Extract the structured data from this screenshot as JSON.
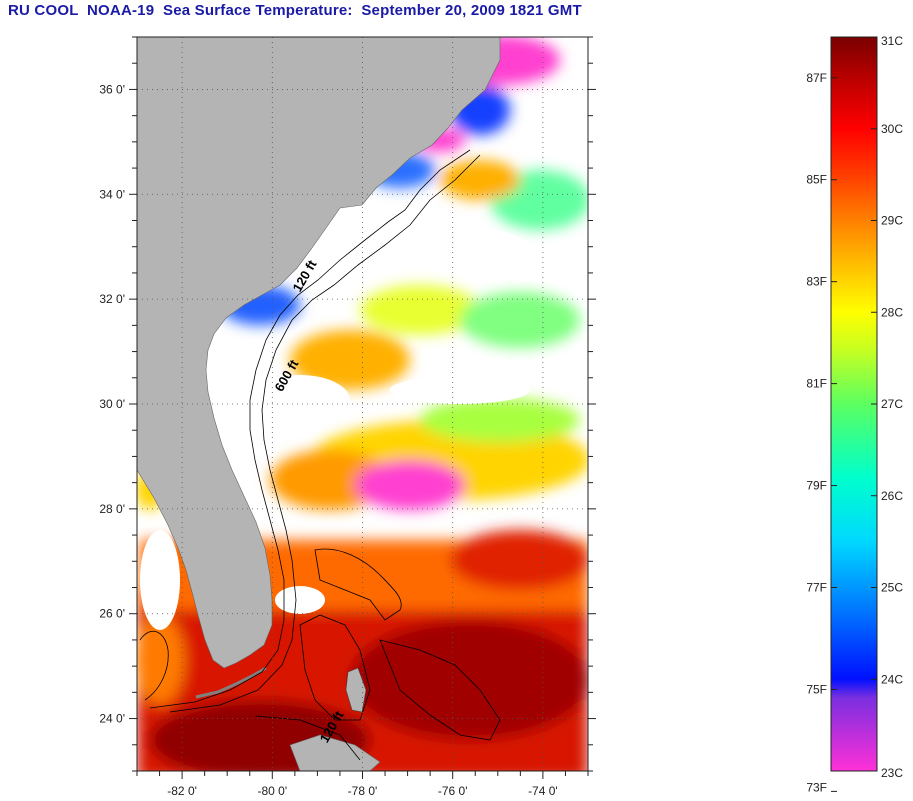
{
  "title": "RU COOL  NOAA-19  Sea Surface Temperature:  September 20, 2009 1821 GMT",
  "map": {
    "lon_range": [
      -83.0,
      -73.0
    ],
    "lat_range": [
      23.0,
      37.0
    ],
    "lon_ticks": [
      {
        "value": -82,
        "label": "-82 0'"
      },
      {
        "value": -80,
        "label": "-80 0'"
      },
      {
        "value": -78,
        "label": "-78 0'"
      },
      {
        "value": -76,
        "label": "-76 0'"
      },
      {
        "value": -74,
        "label": "-74 0'"
      }
    ],
    "lat_ticks": [
      {
        "value": 24,
        "label": "24 0'"
      },
      {
        "value": 26,
        "label": "26 0'"
      },
      {
        "value": 28,
        "label": "28 0'"
      },
      {
        "value": 30,
        "label": "30 0'"
      },
      {
        "value": 32,
        "label": "32 0'"
      },
      {
        "value": 34,
        "label": "34 0'"
      },
      {
        "value": 36,
        "label": "36 0'"
      }
    ],
    "grid": "dotted",
    "contour_labels": [
      {
        "text": "120 ft",
        "lon": -79.2,
        "lat": 32.4
      },
      {
        "text": "600 ft",
        "lon": -79.6,
        "lat": 30.5
      },
      {
        "text": "120 ft",
        "lon": -78.6,
        "lat": 23.8
      }
    ],
    "colors": {
      "land": "#b4b4b4",
      "cloud": "#ffffff",
      "contour": "#000000"
    }
  },
  "colorbar": {
    "celsius_range": [
      23,
      31
    ],
    "celsius_ticks": [
      {
        "value": 31,
        "label": "31C"
      },
      {
        "value": 30,
        "label": "30C"
      },
      {
        "value": 29,
        "label": "29C"
      },
      {
        "value": 28,
        "label": "28C"
      },
      {
        "value": 27,
        "label": "27C"
      },
      {
        "value": 26,
        "label": "26C"
      },
      {
        "value": 25,
        "label": "25C"
      },
      {
        "value": 24,
        "label": "24C"
      },
      {
        "value": 23,
        "label": "23C"
      }
    ],
    "fahrenheit_ticks": [
      {
        "value": 87,
        "label": "87F"
      },
      {
        "value": 85,
        "label": "85F"
      },
      {
        "value": 83,
        "label": "83F"
      },
      {
        "value": 81,
        "label": "81F"
      },
      {
        "value": 79,
        "label": "79F"
      },
      {
        "value": 77,
        "label": "77F"
      },
      {
        "value": 75,
        "label": "75F"
      },
      {
        "value": 73,
        "label": "73F"
      }
    ],
    "stops": [
      {
        "c": 23.0,
        "color": "#ff30d8"
      },
      {
        "c": 23.8,
        "color": "#7a2fe0"
      },
      {
        "c": 24.0,
        "color": "#0010ff"
      },
      {
        "c": 24.7,
        "color": "#0070ff"
      },
      {
        "c": 25.5,
        "color": "#00d8ff"
      },
      {
        "c": 26.2,
        "color": "#00ffcc"
      },
      {
        "c": 27.0,
        "color": "#5cff60"
      },
      {
        "c": 27.6,
        "color": "#c8ff20"
      },
      {
        "c": 28.0,
        "color": "#ffff00"
      },
      {
        "c": 28.5,
        "color": "#ffc000"
      },
      {
        "c": 29.0,
        "color": "#ff8000"
      },
      {
        "c": 29.6,
        "color": "#ff3000"
      },
      {
        "c": 30.0,
        "color": "#ff0000"
      },
      {
        "c": 30.5,
        "color": "#c00000"
      },
      {
        "c": 31.0,
        "color": "#7a0000"
      }
    ]
  }
}
